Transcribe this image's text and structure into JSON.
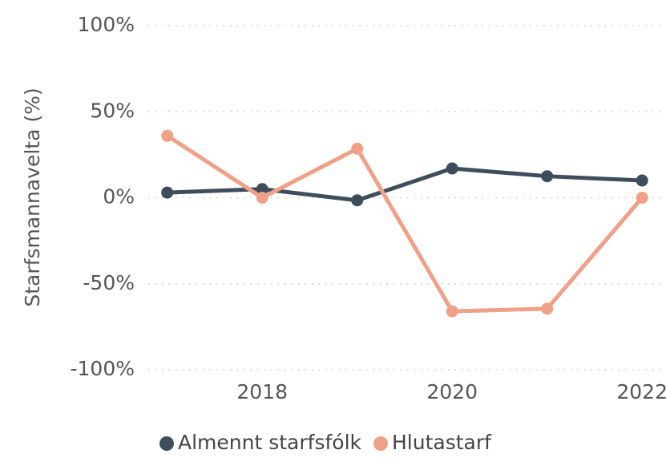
{
  "chart_data": {
    "type": "line",
    "y_label": "Starfsmannavelta (%)",
    "x": [
      2017,
      2018,
      2019,
      2020,
      2021,
      2022
    ],
    "xlim": [
      2016.8,
      2022.3
    ],
    "xticks": [
      2018,
      2020,
      2022
    ],
    "ylim": [
      -100,
      100
    ],
    "yticks": [
      {
        "value": -100,
        "label": "-100%"
      },
      {
        "value": -50,
        "label": "-50%"
      },
      {
        "value": 0,
        "label": "0%"
      },
      {
        "value": 50,
        "label": "50%"
      },
      {
        "value": 100,
        "label": "100%"
      }
    ],
    "grid": true,
    "legend": "bottom",
    "series": [
      {
        "name": "Almennt starfsfólk",
        "color": "#3e4c5c",
        "values": [
          3,
          5,
          -1.5,
          17,
          12.5,
          10
        ]
      },
      {
        "name": "Hlutastarf",
        "color": "#f0a088",
        "values": [
          36,
          0,
          28.5,
          -66,
          -64.5,
          0
        ]
      }
    ]
  }
}
